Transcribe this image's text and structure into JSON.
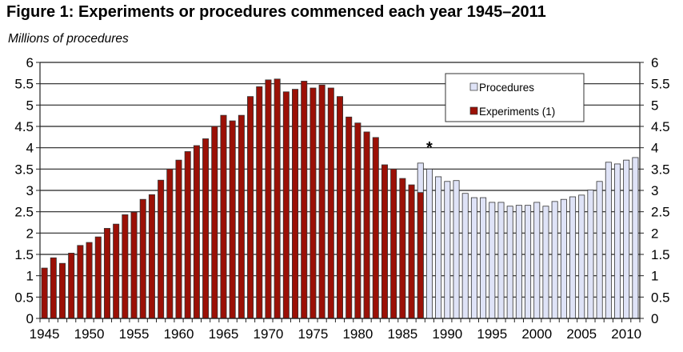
{
  "chart_data": {
    "type": "bar",
    "title": "Figure 1: Experiments or procedures commenced each year 1945–2011",
    "ylabel": "Millions of procedures",
    "xlabel": "",
    "ylim": [
      0,
      6
    ],
    "yticks": [
      "0",
      "0.5",
      "1",
      "1.5",
      "2",
      "2.5",
      "3",
      "3.5",
      "4",
      "4.5",
      "5",
      "5.5",
      "6"
    ],
    "xticks": [
      "1945",
      "1950",
      "1955",
      "1960",
      "1965",
      "1970",
      "1975",
      "1980",
      "1985",
      "1990",
      "1995",
      "2000",
      "2005",
      "2010"
    ],
    "grid": true,
    "legend_placement": "top-right",
    "annotation": "*",
    "annotation_year": 1988,
    "series": [
      {
        "name": "Procedures",
        "color": "#dfe3f7",
        "x": [
          1987,
          1988,
          1989,
          1990,
          1991,
          1992,
          1993,
          1994,
          1995,
          1996,
          1997,
          1998,
          1999,
          2000,
          2001,
          2002,
          2003,
          2004,
          2005,
          2006,
          2007,
          2008,
          2009,
          2010,
          2011
        ],
        "values": [
          3.64,
          3.5,
          3.32,
          3.21,
          3.23,
          2.93,
          2.83,
          2.83,
          2.72,
          2.72,
          2.63,
          2.65,
          2.65,
          2.72,
          2.63,
          2.74,
          2.79,
          2.85,
          2.89,
          3.01,
          3.21,
          3.66,
          3.62,
          3.71,
          3.77
        ]
      },
      {
        "name": "Experiments (1)",
        "color": "#9b1006",
        "x": [
          1945,
          1946,
          1947,
          1948,
          1949,
          1950,
          1951,
          1952,
          1953,
          1954,
          1955,
          1956,
          1957,
          1958,
          1959,
          1960,
          1961,
          1962,
          1963,
          1964,
          1965,
          1966,
          1967,
          1968,
          1969,
          1970,
          1971,
          1972,
          1973,
          1974,
          1975,
          1976,
          1977,
          1978,
          1979,
          1980,
          1981,
          1982,
          1983,
          1984,
          1985,
          1986,
          1987
        ],
        "values": [
          1.18,
          1.42,
          1.29,
          1.53,
          1.71,
          1.78,
          1.91,
          2.11,
          2.21,
          2.43,
          2.49,
          2.79,
          2.9,
          3.24,
          3.5,
          3.71,
          3.91,
          4.05,
          4.21,
          4.5,
          4.76,
          4.63,
          4.76,
          5.2,
          5.43,
          5.59,
          5.61,
          5.31,
          5.37,
          5.56,
          5.4,
          5.47,
          5.4,
          5.2,
          4.72,
          4.58,
          4.37,
          4.24,
          3.6,
          3.5,
          3.28,
          3.13,
          2.95
        ]
      }
    ]
  }
}
